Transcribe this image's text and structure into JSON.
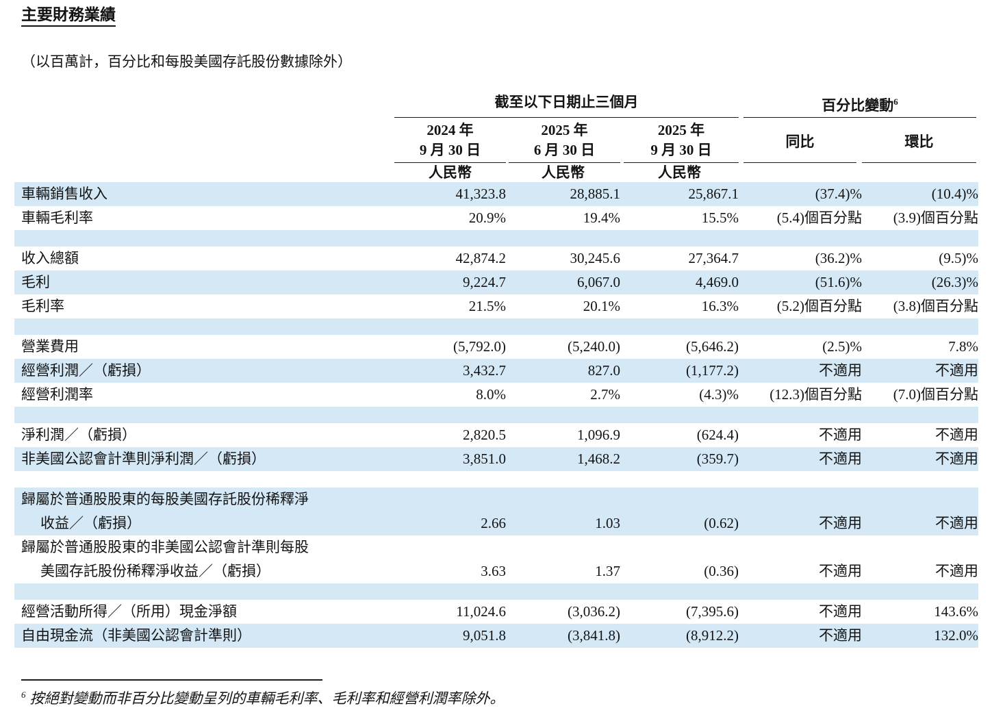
{
  "page": {
    "title": "主要財務業績",
    "subtitle": "（以百萬計，百分比和每股美國存託股份數據除外）",
    "footnote_marker": "6",
    "footnote_text": "按絕對變動而非百分比變動呈列的車輛毛利率、毛利率和經營利潤率除外。"
  },
  "table": {
    "stripe_color": "#d4e8f6",
    "group_headers": {
      "periods": "截至以下日期止三個月",
      "changes": "百分比變動",
      "changes_footnote_ref": "6"
    },
    "column_headers": [
      {
        "line1": "2024 年",
        "line2": "9 月 30 日",
        "currency": "人民幣"
      },
      {
        "line1": "2025 年",
        "line2": "6 月 30 日",
        "currency": "人民幣"
      },
      {
        "line1": "2025 年",
        "line2": "9 月 30 日",
        "currency": "人民幣"
      },
      {
        "label": "同比"
      },
      {
        "label": "環比"
      }
    ],
    "rows": [
      {
        "type": "data",
        "shade": "blue",
        "label": "車輛銷售收入",
        "values": [
          "41,323.8",
          "28,885.1",
          "25,867.1",
          "(37.4)%",
          "(10.4)%"
        ]
      },
      {
        "type": "data",
        "shade": "white",
        "label": "車輛毛利率",
        "values": [
          "20.9%",
          "19.4%",
          "15.5%",
          "(5.4)個百分點",
          "(3.9)個百分點"
        ]
      },
      {
        "type": "spacer",
        "shade": "blue"
      },
      {
        "type": "data",
        "shade": "white",
        "label": "收入總額",
        "values": [
          "42,874.2",
          "30,245.6",
          "27,364.7",
          "(36.2)%",
          "(9.5)%"
        ]
      },
      {
        "type": "data",
        "shade": "blue",
        "label": "毛利",
        "values": [
          "9,224.7",
          "6,067.0",
          "4,469.0",
          "(51.6)%",
          "(26.3)%"
        ]
      },
      {
        "type": "data",
        "shade": "white",
        "label": "毛利率",
        "values": [
          "21.5%",
          "20.1%",
          "16.3%",
          "(5.2)個百分點",
          "(3.8)個百分點"
        ]
      },
      {
        "type": "spacer",
        "shade": "blue"
      },
      {
        "type": "data",
        "shade": "white",
        "label": "營業費用",
        "values": [
          "(5,792.0)",
          "(5,240.0)",
          "(5,646.2)",
          "(2.5)%",
          "7.8%"
        ]
      },
      {
        "type": "data",
        "shade": "blue",
        "label": "經營利潤／（虧損）",
        "values": [
          "3,432.7",
          "827.0",
          "(1,177.2)",
          "不適用",
          "不適用"
        ]
      },
      {
        "type": "data",
        "shade": "white",
        "label": "經營利潤率",
        "values": [
          "8.0%",
          "2.7%",
          "(4.3)%",
          "(12.3)個百分點",
          "(7.0)個百分點"
        ]
      },
      {
        "type": "spacer",
        "shade": "blue"
      },
      {
        "type": "data",
        "shade": "white",
        "label": "淨利潤／（虧損）",
        "values": [
          "2,820.5",
          "1,096.9",
          "(624.4)",
          "不適用",
          "不適用"
        ]
      },
      {
        "type": "data",
        "shade": "blue",
        "label": "非美國公認會計準則淨利潤／（虧損）",
        "values": [
          "3,851.0",
          "1,468.2",
          "(359.7)",
          "不適用",
          "不適用"
        ]
      },
      {
        "type": "spacer",
        "shade": "white"
      },
      {
        "type": "data",
        "shade": "blue",
        "label": "歸屬於普通股股東的每股美國存託股份稀釋淨",
        "label2": "收益／（虧損）",
        "values": [
          "2.66",
          "1.03",
          "(0.62)",
          "不適用",
          "不適用"
        ]
      },
      {
        "type": "data",
        "shade": "white",
        "label": "歸屬於普通股股東的非美國公認會計準則每股",
        "label2": "美國存託股份稀釋淨收益／（虧損）",
        "values": [
          "3.63",
          "1.37",
          "(0.36)",
          "不適用",
          "不適用"
        ]
      },
      {
        "type": "spacer",
        "shade": "blue"
      },
      {
        "type": "data",
        "shade": "white",
        "label": "經營活動所得／（所用）現金淨額",
        "values": [
          "11,024.6",
          "(3,036.2)",
          "(7,395.6)",
          "不適用",
          "143.6%"
        ]
      },
      {
        "type": "data",
        "shade": "blue",
        "label": "自由現金流（非美國公認會計準則）",
        "values": [
          "9,051.8",
          "(3,841.8)",
          "(8,912.2)",
          "不適用",
          "132.0%"
        ]
      }
    ]
  }
}
